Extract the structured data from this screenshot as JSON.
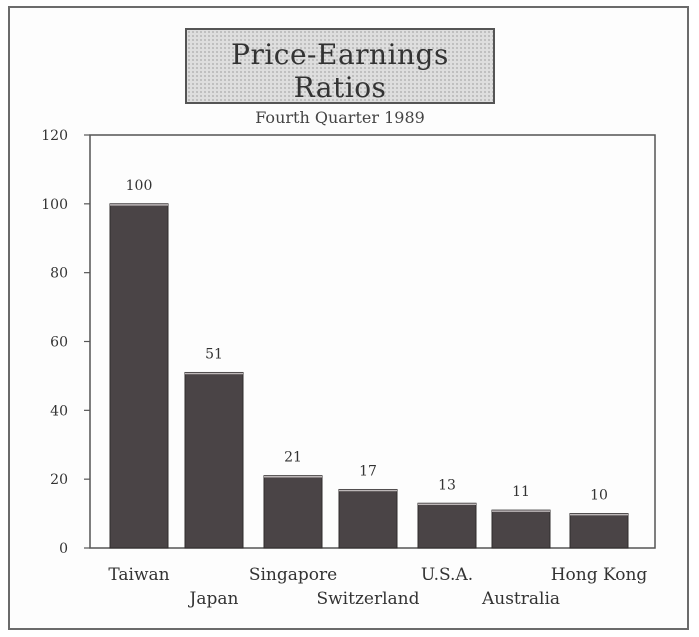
{
  "chart_data": {
    "type": "bar",
    "title": "Price-Earnings Ratios",
    "subtitle": "Fourth Quarter 1989",
    "categories": [
      "Taiwan",
      "Japan",
      "Singapore",
      "Switzerland",
      "U.S.A.",
      "Australia",
      "Hong Kong"
    ],
    "values": [
      100,
      51,
      21,
      17,
      13,
      11,
      10
    ],
    "data_labels": [
      "100",
      "51",
      "21",
      "17",
      "13",
      "11",
      "10"
    ],
    "ylim": [
      0,
      120
    ],
    "yticks": [
      0,
      20,
      40,
      60,
      80,
      100,
      120
    ],
    "xlabel": "",
    "ylabel": "",
    "grid": false,
    "bar_color": "#4a4446"
  }
}
